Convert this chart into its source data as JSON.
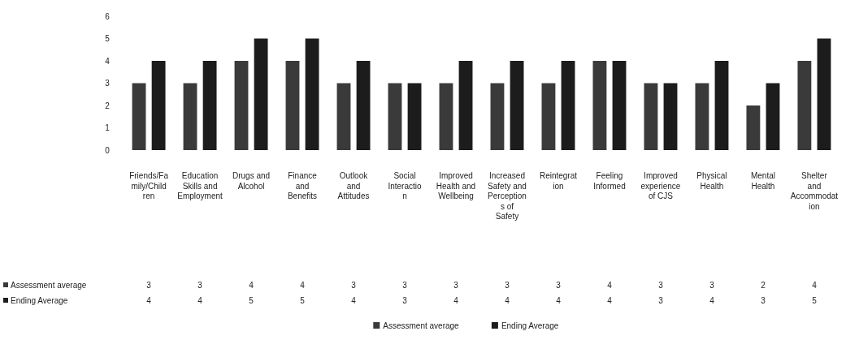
{
  "chart_data": {
    "type": "bar",
    "categories": [
      "Friends/Family/Children",
      "Education Skills and Employment",
      "Drugs and Alcohol",
      "Finance and Benefits",
      "Outlook and Attitudes",
      "Social Interaction",
      "Improved Health and Wellbeing",
      "Increased Safety and Perceptions of Safety",
      "Reintegration",
      "Feeling Informed",
      "Improved experience of CJS",
      "Physical Health",
      "Mental Health",
      "Shelter and Accommodation"
    ],
    "series": [
      {
        "name": "Assessment average",
        "color": "#3a3a3a",
        "values": [
          3,
          3,
          4,
          4,
          3,
          3,
          3,
          3,
          3,
          4,
          3,
          3,
          2,
          4
        ]
      },
      {
        "name": "Ending Average",
        "color": "#1c1c1c",
        "values": [
          4,
          4,
          5,
          5,
          4,
          3,
          4,
          4,
          4,
          4,
          3,
          4,
          3,
          5
        ]
      }
    ],
    "ylim": [
      0,
      6
    ],
    "yticks": [
      0,
      1,
      2,
      3,
      4,
      5,
      6
    ],
    "grid": false,
    "legend": "bottom",
    "data_labels": true
  }
}
